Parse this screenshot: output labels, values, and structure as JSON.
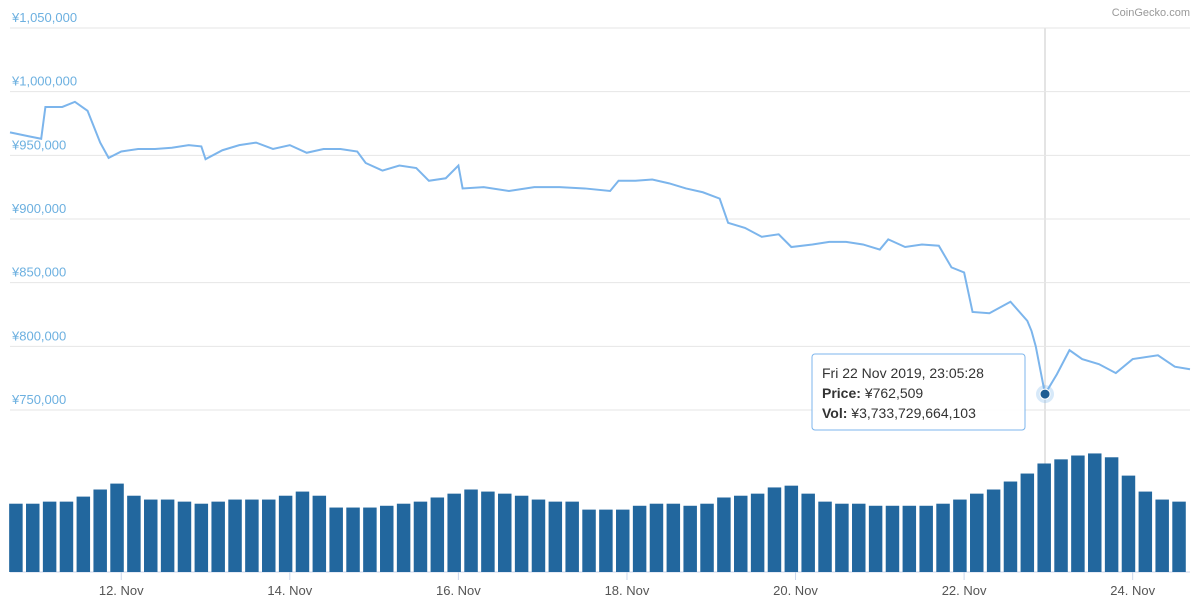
{
  "chart_data": {
    "type": "line",
    "credit": "CoinGecko.com",
    "xlim": [
      10.68,
      24.68
    ],
    "xticks": [
      {
        "value": 12,
        "label": "12. Nov"
      },
      {
        "value": 14,
        "label": "14. Nov"
      },
      {
        "value": 16,
        "label": "16. Nov"
      },
      {
        "value": 18,
        "label": "18. Nov"
      },
      {
        "value": 20,
        "label": "20. Nov"
      },
      {
        "value": 22,
        "label": "22. Nov"
      },
      {
        "value": 24,
        "label": "24. Nov"
      }
    ],
    "ylim": [
      750000,
      1050000
    ],
    "yticks": [
      {
        "value": 750000,
        "label": "¥750,000"
      },
      {
        "value": 800000,
        "label": "¥800,000"
      },
      {
        "value": 850000,
        "label": "¥850,000"
      },
      {
        "value": 900000,
        "label": "¥900,000"
      },
      {
        "value": 950000,
        "label": "¥950,000"
      },
      {
        "value": 1000000,
        "label": "¥1,000,000"
      },
      {
        "value": 1050000,
        "label": "¥1,050,000"
      }
    ],
    "y2lim": [
      0,
      4600000000000.0
    ],
    "grid": true,
    "series": [
      {
        "color": "#7cb5ec",
        "x": [
          10.68,
          10.9,
          11.05,
          11.1,
          11.3,
          11.45,
          11.6,
          11.75,
          11.85,
          12.0,
          12.2,
          12.4,
          12.6,
          12.8,
          12.95,
          13.0,
          13.2,
          13.4,
          13.6,
          13.8,
          14.0,
          14.2,
          14.4,
          14.6,
          14.8,
          14.9,
          15.1,
          15.3,
          15.5,
          15.65,
          15.85,
          16.0,
          16.05,
          16.3,
          16.6,
          16.9,
          17.2,
          17.5,
          17.8,
          17.9,
          18.1,
          18.3,
          18.5,
          18.7,
          18.9,
          19.1,
          19.2,
          19.4,
          19.6,
          19.8,
          19.95,
          20.2,
          20.4,
          20.6,
          20.8,
          21.0,
          21.1,
          21.3,
          21.5,
          21.7,
          21.85,
          22.0,
          22.1,
          22.3,
          22.55,
          22.75,
          22.8,
          22.85,
          22.96,
          23.1,
          23.25,
          23.4,
          23.6,
          23.8,
          24.0,
          24.3,
          24.5,
          24.68
        ],
        "values": [
          968000,
          965000,
          963000,
          988000,
          988000,
          992000,
          985000,
          960000,
          948000,
          953000,
          955000,
          955000,
          956000,
          958000,
          957000,
          947000,
          954000,
          958000,
          960000,
          955000,
          958000,
          952000,
          955000,
          955000,
          953000,
          944000,
          938000,
          942000,
          940000,
          930000,
          932000,
          942000,
          924000,
          925000,
          922000,
          925000,
          925000,
          924000,
          922000,
          930000,
          930000,
          931000,
          928000,
          924000,
          921000,
          916000,
          897000,
          893000,
          886000,
          888000,
          878000,
          880000,
          882000,
          882000,
          880000,
          876000,
          884000,
          878000,
          880000,
          879000,
          862000,
          858000,
          827000,
          826000,
          835000,
          820000,
          812000,
          800000,
          762509,
          778000,
          797000,
          790000,
          786000,
          779000,
          790000,
          793000,
          784000,
          782000
        ]
      },
      {
        "color": "#22679e",
        "axis": "y2",
        "x": [
          10.75,
          10.95,
          11.15,
          11.35,
          11.55,
          11.75,
          11.95,
          12.15,
          12.35,
          12.55,
          12.75,
          12.95,
          13.15,
          13.35,
          13.55,
          13.75,
          13.95,
          14.15,
          14.35,
          14.55,
          14.75,
          14.95,
          15.15,
          15.35,
          15.55,
          15.75,
          15.95,
          16.15,
          16.35,
          16.55,
          16.75,
          16.95,
          17.15,
          17.35,
          17.55,
          17.75,
          17.95,
          18.15,
          18.35,
          18.55,
          18.75,
          18.95,
          19.15,
          19.35,
          19.55,
          19.75,
          19.95,
          20.15,
          20.35,
          20.55,
          20.75,
          20.95,
          21.15,
          21.35,
          21.55,
          21.75,
          21.95,
          22.15,
          22.35,
          22.55,
          22.75,
          22.95,
          23.15,
          23.35,
          23.55,
          23.75,
          23.95,
          24.15,
          24.35,
          24.55
        ],
        "values": [
          2310000000000.0,
          2310000000000.0,
          2380000000000.0,
          2380000000000.0,
          2550000000000.0,
          2790000000000.0,
          2990000000000.0,
          2580000000000.0,
          2450000000000.0,
          2450000000000.0,
          2380000000000.0,
          2310000000000.0,
          2380000000000.0,
          2450000000000.0,
          2450000000000.0,
          2450000000000.0,
          2580000000000.0,
          2720000000000.0,
          2580000000000.0,
          2180000000000.0,
          2180000000000.0,
          2180000000000.0,
          2240000000000.0,
          2310000000000.0,
          2380000000000.0,
          2520000000000.0,
          2650000000000.0,
          2790000000000.0,
          2720000000000.0,
          2650000000000.0,
          2580000000000.0,
          2450000000000.0,
          2380000000000.0,
          2380000000000.0,
          2110000000000.0,
          2110000000000.0,
          2110000000000.0,
          2240000000000.0,
          2310000000000.0,
          2310000000000.0,
          2240000000000.0,
          2310000000000.0,
          2520000000000.0,
          2580000000000.0,
          2650000000000.0,
          2860000000000.0,
          2920000000000.0,
          2650000000000.0,
          2380000000000.0,
          2310000000000.0,
          2310000000000.0,
          2240000000000.0,
          2240000000000.0,
          2240000000000.0,
          2240000000000.0,
          2310000000000.0,
          2450000000000.0,
          2650000000000.0,
          2790000000000.0,
          3060000000000.0,
          3330000000000.0,
          3670000000000.0,
          3810000000000.0,
          3940000000000.0,
          4010000000000.0,
          3880000000000.0,
          3260000000000.0,
          2720000000000.0,
          2450000000000.0,
          2380000000000.0
        ]
      }
    ],
    "tooltip": {
      "date": "Fri 22 Nov 2019, 23:05:28",
      "price_label": "Price:",
      "price": "¥762,509",
      "vol_label": "Vol:",
      "vol": "¥3,733,729,664,103"
    }
  }
}
